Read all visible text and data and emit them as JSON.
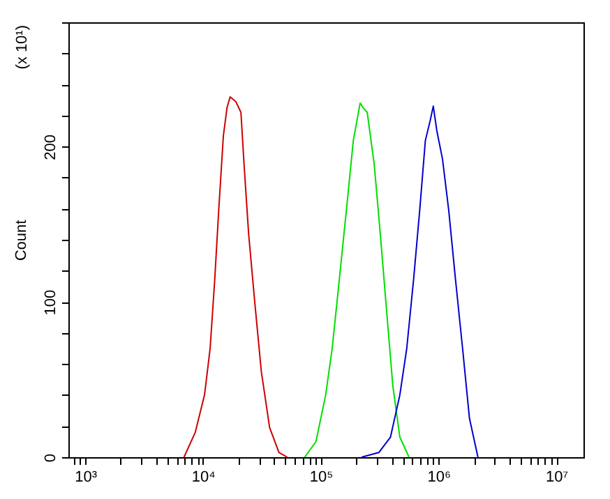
{
  "chart_data": {
    "type": "line",
    "ylabel": "Count",
    "annotations": [
      "(x 10¹)"
    ],
    "xlim": [
      720,
      17000000
    ],
    "ylim": [
      0,
      280
    ],
    "log": "x",
    "grid": false,
    "marker": "none",
    "line_style": "solid",
    "xticks": [
      {
        "value": 800,
        "label": null
      },
      {
        "value": 900,
        "label": null
      },
      {
        "value": 1000,
        "label": "10³"
      },
      {
        "value": 2000,
        "label": null
      },
      {
        "value": 3000,
        "label": null
      },
      {
        "value": 4000,
        "label": null
      },
      {
        "value": 5000,
        "label": null
      },
      {
        "value": 6000,
        "label": null
      },
      {
        "value": 7000,
        "label": null
      },
      {
        "value": 8000,
        "label": null
      },
      {
        "value": 9000,
        "label": null
      },
      {
        "value": 10000,
        "label": "10⁴"
      },
      {
        "value": 20000,
        "label": null
      },
      {
        "value": 30000,
        "label": null
      },
      {
        "value": 40000,
        "label": null
      },
      {
        "value": 50000,
        "label": null
      },
      {
        "value": 60000,
        "label": null
      },
      {
        "value": 70000,
        "label": null
      },
      {
        "value": 80000,
        "label": null
      },
      {
        "value": 90000,
        "label": null
      },
      {
        "value": 100000,
        "label": "10⁵"
      },
      {
        "value": 200000,
        "label": null
      },
      {
        "value": 300000,
        "label": null
      },
      {
        "value": 400000,
        "label": null
      },
      {
        "value": 500000,
        "label": null
      },
      {
        "value": 600000,
        "label": null
      },
      {
        "value": 700000,
        "label": null
      },
      {
        "value": 800000,
        "label": null
      },
      {
        "value": 900000,
        "label": null
      },
      {
        "value": 1000000,
        "label": "10⁶"
      },
      {
        "value": 2000000,
        "label": null
      },
      {
        "value": 3000000,
        "label": null
      },
      {
        "value": 4000000,
        "label": null
      },
      {
        "value": 5000000,
        "label": null
      },
      {
        "value": 6000000,
        "label": null
      },
      {
        "value": 7000000,
        "label": null
      },
      {
        "value": 8000000,
        "label": null
      },
      {
        "value": 9000000,
        "label": null
      },
      {
        "value": 10000000,
        "label": "10⁷"
      }
    ],
    "yticks": [
      0,
      {
        "value": 20,
        "label": null
      },
      {
        "value": 40,
        "label": null
      },
      {
        "value": 60,
        "label": null
      },
      {
        "value": 80,
        "label": null
      },
      100,
      {
        "value": 120,
        "label": null
      },
      {
        "value": 140,
        "label": null
      },
      {
        "value": 160,
        "label": null
      },
      {
        "value": 180,
        "label": null
      },
      200,
      {
        "value": 220,
        "label": null
      },
      {
        "value": 240,
        "label": null
      },
      {
        "value": 260,
        "label": null
      },
      {
        "value": 280,
        "label": null
      }
    ],
    "series": [
      {
        "color": "#cc0000",
        "x": [
          6900,
          8600,
          10300,
          11500,
          12600,
          13600,
          14900,
          16000,
          17000,
          19000,
          21000,
          22300,
          24400,
          27500,
          31300,
          36800,
          44200,
          52000
        ],
        "values": [
          0,
          16,
          40,
          70,
          115,
          159,
          207,
          225,
          232,
          229,
          222,
          189,
          144,
          100,
          55,
          19,
          3,
          0
        ]
      },
      {
        "color": "#00dd00",
        "x": [
          73000,
          91000,
          110000,
          125000,
          144000,
          165000,
          189000,
          216000,
          229000,
          248000,
          284000,
          320000,
          357000,
          409000,
          469000,
          561000
        ],
        "values": [
          0,
          10,
          40,
          70,
          115,
          159,
          204,
          228,
          225,
          222,
          189,
          144,
          100,
          46,
          13,
          0
        ]
      },
      {
        "color": "#0000cc",
        "x": [
          222000,
          311000,
          391000,
          469000,
          537000,
          615000,
          692000,
          773000,
          845000,
          902000,
          968000,
          1080000,
          1220000,
          1390000,
          1600000,
          1830000,
          2160000
        ],
        "values": [
          0,
          3,
          13,
          40,
          70,
          115,
          159,
          204,
          216,
          226,
          210,
          192,
          159,
          115,
          70,
          25,
          0
        ]
      }
    ]
  }
}
